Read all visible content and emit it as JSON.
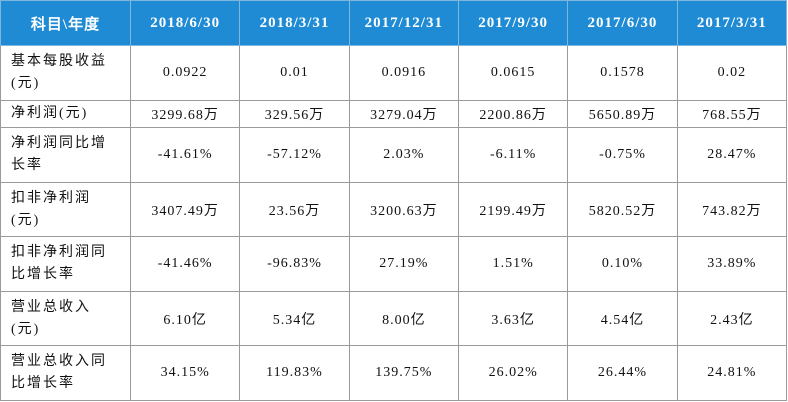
{
  "table": {
    "header": [
      "科目\\年度",
      "2018/6/30",
      "2018/3/31",
      "2017/12/31",
      "2017/9/30",
      "2017/6/30",
      "2017/3/31"
    ],
    "rows": [
      [
        "基本每股收益(元)",
        "0.0922",
        "0.01",
        "0.0916",
        "0.0615",
        "0.1578",
        "0.02"
      ],
      [
        "净利润(元)",
        "3299.68万",
        "329.56万",
        "3279.04万",
        "2200.86万",
        "5650.89万",
        "768.55万"
      ],
      [
        "净利润同比增长率",
        "-41.61%",
        "-57.12%",
        "2.03%",
        "-6.11%",
        "-0.75%",
        "28.47%"
      ],
      [
        "扣非净利润(元)",
        "3407.49万",
        "23.56万",
        "3200.63万",
        "2199.49万",
        "5820.52万",
        "743.82万"
      ],
      [
        "扣非净利润同比增长率",
        "-41.46%",
        "-96.83%",
        "27.19%",
        "1.51%",
        "0.10%",
        "33.89%"
      ],
      [
        "营业总收入(元)",
        "6.10亿",
        "5.34亿",
        "8.00亿",
        "3.63亿",
        "4.54亿",
        "2.43亿"
      ],
      [
        "营业总收入同比增长率",
        "34.15%",
        "119.83%",
        "139.75%",
        "26.02%",
        "26.44%",
        "24.81%"
      ]
    ]
  }
}
